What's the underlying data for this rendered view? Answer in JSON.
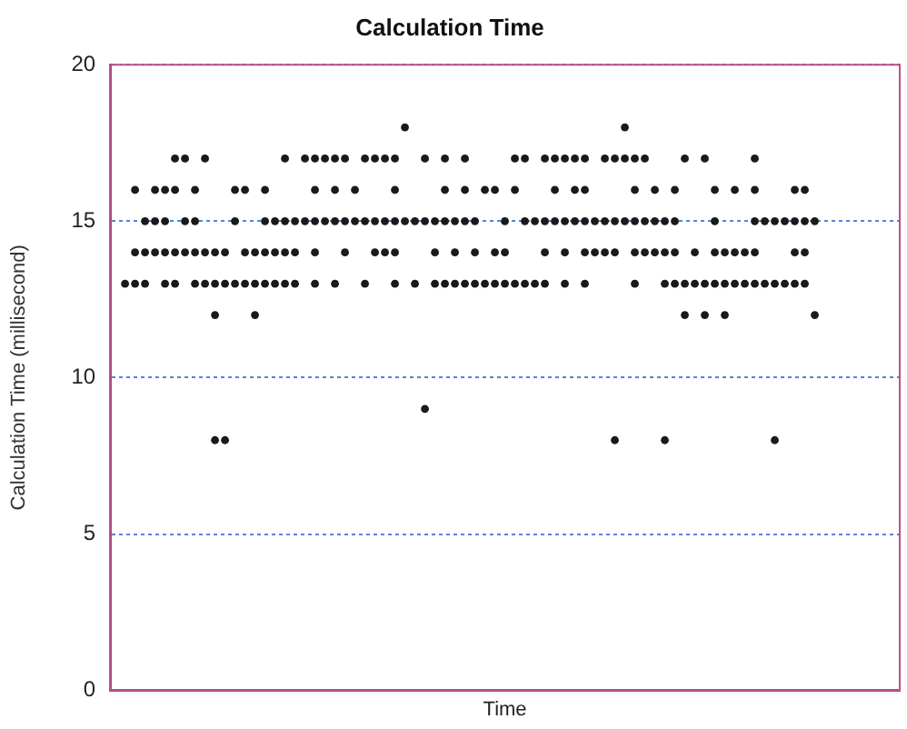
{
  "chart_data": {
    "type": "scatter",
    "title": "Calculation Time",
    "xlabel": "Time",
    "ylabel": "Calculation Time (millisecond)",
    "categories": [
      null,
      null,
      null,
      null,
      null,
      null,
      null,
      null,
      null,
      null,
      null,
      null,
      null,
      null,
      null,
      null,
      null,
      null,
      null,
      null,
      null,
      null,
      null,
      null,
      null,
      null,
      null,
      null,
      null,
      null,
      null,
      null,
      null,
      null,
      null,
      null,
      null,
      null,
      null,
      null,
      null,
      null,
      null,
      null,
      null,
      null,
      null,
      null,
      null,
      null,
      null,
      null,
      null,
      null,
      null,
      null,
      null,
      null,
      null,
      null,
      null,
      null,
      null,
      null,
      null,
      null,
      null,
      null,
      null,
      null,
      null,
      null,
      null,
      null,
      null,
      null,
      null,
      null,
      null
    ],
    "ylim": [
      0,
      20
    ],
    "yticks": [
      0,
      5,
      10,
      15,
      20
    ],
    "grid": "y",
    "tick_labels": "y",
    "marker": "circle",
    "series": [
      {
        "color": "#1a1a1a",
        "values": [
          null,
          13,
          16,
          15,
          16,
          16,
          17,
          17,
          16,
          17,
          14,
          14,
          16,
          16,
          14,
          16,
          15,
          17,
          15,
          17,
          17,
          17,
          17,
          17,
          16,
          17,
          17,
          17,
          17,
          18,
          15,
          17,
          15,
          17,
          15,
          17,
          15,
          16,
          16,
          15,
          17,
          17,
          15,
          17,
          17,
          17,
          17,
          17,
          15,
          17,
          17,
          18,
          17,
          17,
          16,
          15,
          16,
          17,
          14,
          17,
          16,
          14,
          16,
          14,
          17,
          15,
          15,
          15,
          16,
          16,
          15,
          null,
          null,
          null,
          null,
          null,
          null,
          null,
          null
        ]
      },
      {
        "color": "#1a1a1a",
        "values": [
          null,
          null,
          14,
          14,
          15,
          15,
          16,
          15,
          15,
          14,
          13,
          13,
          15,
          14,
          13,
          15,
          14,
          15,
          14,
          15,
          16,
          15,
          16,
          15,
          15,
          15,
          15,
          15,
          16,
          15,
          13,
          15,
          14,
          16,
          14,
          16,
          14,
          13,
          14,
          14,
          16,
          15,
          13,
          15,
          16,
          15,
          16,
          16,
          14,
          15,
          15,
          17,
          16,
          15,
          15,
          14,
          15,
          13,
          13,
          13,
          15,
          13,
          14,
          13,
          16,
          13,
          13,
          13,
          15,
          15,
          12,
          null,
          null,
          null,
          null,
          null,
          null,
          null,
          null
        ]
      },
      {
        "color": "#1a1a1a",
        "values": [
          null,
          null,
          13,
          13,
          14,
          14,
          14,
          14,
          14,
          13,
          12,
          8,
          13,
          13,
          12,
          14,
          13,
          14,
          13,
          null,
          15,
          null,
          15,
          14,
          null,
          13,
          14,
          14,
          15,
          null,
          null,
          9,
          13,
          15,
          13,
          15,
          13,
          null,
          13,
          13,
          13,
          13,
          null,
          14,
          15,
          14,
          15,
          15,
          null,
          14,
          14,
          15,
          15,
          14,
          14,
          13,
          14,
          12,
          null,
          12,
          14,
          12,
          13,
          null,
          15,
          null,
          8,
          null,
          14,
          14,
          null,
          null,
          null,
          null,
          null,
          null,
          null,
          null,
          null
        ]
      },
      {
        "color": "#1a1a1a",
        "values": [
          null,
          null,
          null,
          null,
          null,
          13,
          13,
          null,
          13,
          null,
          8,
          null,
          null,
          null,
          null,
          13,
          null,
          13,
          null,
          null,
          14,
          null,
          13,
          null,
          null,
          null,
          null,
          null,
          14,
          null,
          null,
          null,
          null,
          13,
          null,
          13,
          null,
          null,
          null,
          null,
          null,
          null,
          null,
          13,
          null,
          13,
          null,
          14,
          null,
          null,
          8,
          null,
          14,
          null,
          null,
          8,
          13,
          null,
          null,
          null,
          13,
          null,
          null,
          null,
          14,
          null,
          null,
          null,
          13,
          13,
          null,
          null,
          null,
          null,
          null,
          null,
          null,
          null,
          null
        ]
      },
      {
        "color": "#1a1a1a",
        "values": [
          null,
          null,
          null,
          null,
          null,
          null,
          null,
          null,
          null,
          null,
          null,
          null,
          null,
          null,
          null,
          null,
          null,
          null,
          null,
          null,
          13,
          null,
          null,
          null,
          null,
          null,
          null,
          null,
          13,
          null,
          null,
          null,
          null,
          null,
          null,
          null,
          null,
          null,
          null,
          null,
          null,
          null,
          null,
          null,
          null,
          null,
          null,
          13,
          null,
          null,
          null,
          null,
          13,
          null,
          null,
          null,
          null,
          null,
          null,
          null,
          null,
          null,
          null,
          null,
          13,
          null,
          null,
          null,
          null,
          null,
          null,
          null,
          null,
          null,
          null,
          null,
          null,
          null,
          null
        ]
      }
    ]
  }
}
